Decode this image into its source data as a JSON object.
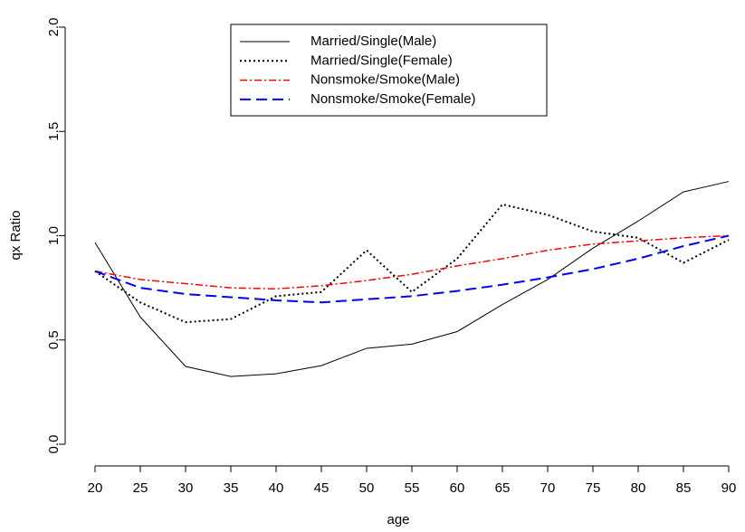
{
  "chart_data": {
    "type": "line",
    "x": [
      20,
      25,
      30,
      35,
      40,
      45,
      50,
      55,
      60,
      65,
      70,
      75,
      80,
      85,
      90
    ],
    "x_label": "age",
    "y_label": "qx Ratio",
    "xlim": [
      20,
      90
    ],
    "ylim": [
      0,
      2
    ],
    "xticks": [
      20,
      25,
      30,
      35,
      40,
      45,
      50,
      55,
      60,
      65,
      70,
      75,
      80,
      85,
      90
    ],
    "yticks": [
      {
        "value": 0,
        "label": "0.0"
      },
      {
        "value": 0.5,
        "label": "0.5"
      },
      {
        "value": 1,
        "label": "1.0"
      },
      {
        "value": 1.5,
        "label": "1.5"
      },
      {
        "value": 2,
        "label": "2.0"
      }
    ],
    "grid": false,
    "legend": "top",
    "series": [
      {
        "name": "Married/Single(Male)",
        "color": "#000000",
        "linestyle": "solid",
        "values": [
          0.967,
          0.61,
          0.373,
          0.325,
          0.338,
          0.377,
          0.46,
          0.48,
          0.54,
          0.67,
          0.79,
          0.94,
          1.07,
          1.21,
          1.26
        ]
      },
      {
        "name": "Married/Single(Female)",
        "color": "#000000",
        "linestyle": "dotted",
        "values": [
          0.83,
          0.68,
          0.585,
          0.6,
          0.71,
          0.73,
          0.93,
          0.73,
          0.89,
          1.15,
          1.1,
          1.02,
          0.99,
          0.87,
          0.98
        ]
      },
      {
        "name": "Nonsmoke/Smoke(Male)",
        "color": "#ff0000",
        "linestyle": "dashdot",
        "values": [
          0.83,
          0.79,
          0.77,
          0.75,
          0.745,
          0.76,
          0.785,
          0.815,
          0.855,
          0.89,
          0.93,
          0.96,
          0.975,
          0.99,
          1.0
        ]
      },
      {
        "name": "Nonsmoke/Smoke(Female)",
        "color": "#0000ff",
        "linestyle": "dashed",
        "values": [
          0.83,
          0.75,
          0.72,
          0.705,
          0.69,
          0.68,
          0.695,
          0.71,
          0.735,
          0.765,
          0.8,
          0.84,
          0.89,
          0.95,
          1.0
        ]
      }
    ]
  }
}
